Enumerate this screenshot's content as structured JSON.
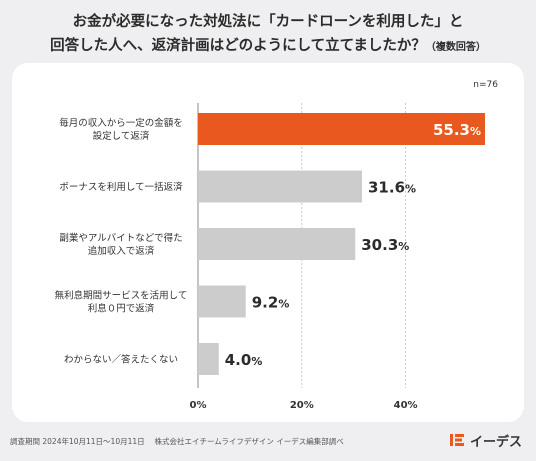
{
  "title": {
    "line1": "お金が必要になった対処法に「カードローンを利用した」と",
    "line2": "回答した人へ、返済計画はどのようにして立てましたか？",
    "line2_sub": "（複数回答）"
  },
  "sample_size": "n=76",
  "chart_data": {
    "type": "bar",
    "orientation": "horizontal",
    "categories": [
      [
        "毎月の収入から一定の金額を",
        "設定して返済"
      ],
      [
        "ボーナスを利用して一括返済"
      ],
      [
        "副業やアルバイトなどで得た",
        "追加収入で返済"
      ],
      [
        "無利息期間サービスを活用して",
        "利息０円で返済"
      ],
      [
        "わからない／答えたくない"
      ]
    ],
    "values": [
      55.3,
      31.6,
      30.3,
      9.2,
      4.0
    ],
    "value_labels": [
      {
        "num": "55.3",
        "unit": "%"
      },
      {
        "num": "31.6",
        "unit": "%"
      },
      {
        "num": "30.3",
        "unit": "%"
      },
      {
        "num": "9.2",
        "unit": "%"
      },
      {
        "num": "4.0",
        "unit": "%"
      }
    ],
    "xlim": [
      0,
      55.3
    ],
    "x_ticks": [
      0,
      20,
      40
    ],
    "x_tick_labels": [
      "0%",
      "20%",
      "40%"
    ],
    "grid": true,
    "colors": {
      "highlight": "#e8581f",
      "bar": "#cccccd",
      "grid": "#bfbfbf"
    }
  },
  "footer": "調査期間 2024年10月11日〜10月11日　 株式会社エイチームライフデザイン イーデス編集部調べ",
  "logo": {
    "text": "イーデス",
    "icon": "e-logo-icon",
    "color": "#e8581f"
  }
}
